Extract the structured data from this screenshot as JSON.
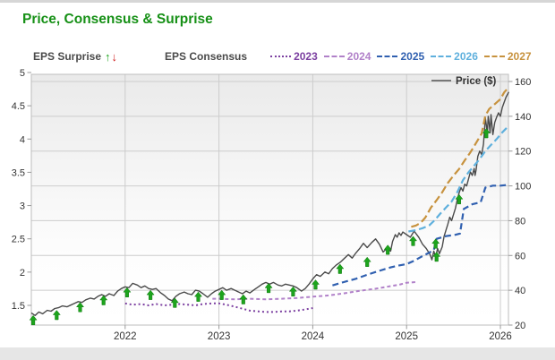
{
  "title": "Price, Consensus & Surprise",
  "title_color": "#169016",
  "legend": {
    "eps_surprise_label": "EPS Surprise",
    "up_arrow": "↑",
    "down_arrow": "↓",
    "up_color": "#1da41d",
    "down_color": "#d02020",
    "eps_consensus_label": "EPS Consensus",
    "price_label": "Price ($)"
  },
  "chart_data": {
    "type": "line",
    "title": "Price, Consensus & Surprise",
    "x_ticks": [
      "2022",
      "2023",
      "2024",
      "2025",
      "2026"
    ],
    "x_range": [
      2021.0,
      2026.1
    ],
    "left_axis": {
      "name": "EPS Consensus",
      "ticks": [
        "5",
        "4.5",
        "4",
        "3.5",
        "3",
        "2.5",
        "2",
        "1.5"
      ],
      "range": [
        1.5,
        5
      ]
    },
    "right_axis": {
      "name": "Price ($)",
      "ticks": [
        "160",
        "140",
        "120",
        "100",
        "80",
        "60",
        "40",
        "20"
      ],
      "range": [
        20,
        160
      ]
    },
    "grid": true,
    "legend_position": "top",
    "series": [
      {
        "name": "Price ($)",
        "axis": "price",
        "color": "#4a4a4a",
        "dash": "",
        "width": 1.4,
        "points": [
          [
            2021.0,
            27
          ],
          [
            2021.04,
            25.5
          ],
          [
            2021.08,
            27.5
          ],
          [
            2021.12,
            26.5
          ],
          [
            2021.17,
            28.5
          ],
          [
            2021.21,
            28
          ],
          [
            2021.25,
            29.5
          ],
          [
            2021.29,
            30
          ],
          [
            2021.33,
            31
          ],
          [
            2021.38,
            30.5
          ],
          [
            2021.42,
            31.5
          ],
          [
            2021.46,
            32.5
          ],
          [
            2021.5,
            33.5
          ],
          [
            2021.54,
            33
          ],
          [
            2021.58,
            34.5
          ],
          [
            2021.63,
            35.5
          ],
          [
            2021.67,
            35
          ],
          [
            2021.71,
            36.5
          ],
          [
            2021.75,
            37.5
          ],
          [
            2021.79,
            36.5
          ],
          [
            2021.83,
            38
          ],
          [
            2021.88,
            37
          ],
          [
            2021.92,
            39.5
          ],
          [
            2021.96,
            41
          ],
          [
            2022.0,
            42
          ],
          [
            2022.04,
            41.5
          ],
          [
            2022.08,
            44
          ],
          [
            2022.13,
            43
          ],
          [
            2022.17,
            41.5
          ],
          [
            2022.21,
            42.5
          ],
          [
            2022.25,
            41
          ],
          [
            2022.29,
            40.5
          ],
          [
            2022.33,
            41
          ],
          [
            2022.38,
            38.5
          ],
          [
            2022.42,
            37
          ],
          [
            2022.46,
            35
          ],
          [
            2022.5,
            34
          ],
          [
            2022.54,
            36.5
          ],
          [
            2022.58,
            38
          ],
          [
            2022.63,
            39
          ],
          [
            2022.67,
            38
          ],
          [
            2022.71,
            37.5
          ],
          [
            2022.75,
            40
          ],
          [
            2022.79,
            39.5
          ],
          [
            2022.83,
            38
          ],
          [
            2022.88,
            36
          ],
          [
            2022.92,
            38
          ],
          [
            2022.96,
            39.5
          ],
          [
            2023.0,
            40.5
          ],
          [
            2023.04,
            41.5
          ],
          [
            2023.08,
            40
          ],
          [
            2023.13,
            41
          ],
          [
            2023.17,
            40
          ],
          [
            2023.21,
            39
          ],
          [
            2023.25,
            38
          ],
          [
            2023.29,
            39.5
          ],
          [
            2023.33,
            38.5
          ],
          [
            2023.38,
            40.5
          ],
          [
            2023.42,
            42
          ],
          [
            2023.46,
            43.5
          ],
          [
            2023.5,
            44.5
          ],
          [
            2023.54,
            43.5
          ],
          [
            2023.58,
            44.5
          ],
          [
            2023.63,
            43
          ],
          [
            2023.67,
            42.5
          ],
          [
            2023.71,
            43.5
          ],
          [
            2023.75,
            43
          ],
          [
            2023.79,
            42.5
          ],
          [
            2023.83,
            41.5
          ],
          [
            2023.88,
            39.5
          ],
          [
            2023.92,
            41
          ],
          [
            2023.96,
            43.5
          ],
          [
            2024.0,
            46.5
          ],
          [
            2024.04,
            49
          ],
          [
            2024.08,
            48
          ],
          [
            2024.13,
            50.5
          ],
          [
            2024.17,
            49.5
          ],
          [
            2024.21,
            52.5
          ],
          [
            2024.25,
            54.5
          ],
          [
            2024.29,
            56
          ],
          [
            2024.33,
            58
          ],
          [
            2024.38,
            60.5
          ],
          [
            2024.42,
            58.5
          ],
          [
            2024.46,
            61.5
          ],
          [
            2024.5,
            64
          ],
          [
            2024.54,
            67
          ],
          [
            2024.58,
            64.5
          ],
          [
            2024.63,
            67.5
          ],
          [
            2024.67,
            69.5
          ],
          [
            2024.71,
            66.5
          ],
          [
            2024.75,
            62
          ],
          [
            2024.79,
            64
          ],
          [
            2024.83,
            62.5
          ],
          [
            2024.85,
            68
          ],
          [
            2024.88,
            72
          ],
          [
            2024.9,
            70.5
          ],
          [
            2024.92,
            73
          ],
          [
            2024.94,
            71.5
          ],
          [
            2024.96,
            73.5
          ],
          [
            2025.0,
            72
          ],
          [
            2025.04,
            70.5
          ],
          [
            2025.08,
            74
          ],
          [
            2025.13,
            70.5
          ],
          [
            2025.17,
            66.5
          ],
          [
            2025.21,
            64
          ],
          [
            2025.25,
            60.5
          ],
          [
            2025.27,
            57.5
          ],
          [
            2025.29,
            62.5
          ],
          [
            2025.31,
            59
          ],
          [
            2025.33,
            64
          ],
          [
            2025.35,
            61
          ],
          [
            2025.38,
            65
          ],
          [
            2025.4,
            71
          ],
          [
            2025.42,
            74.5
          ],
          [
            2025.44,
            78
          ],
          [
            2025.46,
            82
          ],
          [
            2025.48,
            80
          ],
          [
            2025.5,
            83.5
          ],
          [
            2025.52,
            87
          ],
          [
            2025.54,
            92
          ],
          [
            2025.56,
            96
          ],
          [
            2025.58,
            99
          ],
          [
            2025.6,
            97
          ],
          [
            2025.62,
            101
          ],
          [
            2025.64,
            100
          ],
          [
            2025.66,
            104
          ],
          [
            2025.68,
            108
          ],
          [
            2025.7,
            106
          ],
          [
            2025.72,
            110
          ],
          [
            2025.73,
            106
          ],
          [
            2025.74,
            109
          ],
          [
            2025.76,
            117
          ],
          [
            2025.78,
            120
          ],
          [
            2025.8,
            118
          ],
          [
            2025.81,
            121
          ],
          [
            2025.82,
            124
          ],
          [
            2025.83,
            132
          ],
          [
            2025.84,
            139
          ],
          [
            2025.85,
            135
          ],
          [
            2025.86,
            129.5
          ],
          [
            2025.87,
            140
          ],
          [
            2025.88,
            136
          ],
          [
            2025.89,
            130.5
          ],
          [
            2025.9,
            141
          ],
          [
            2025.92,
            129.5
          ],
          [
            2025.94,
            136.5
          ],
          [
            2025.96,
            139.5
          ],
          [
            2025.98,
            142
          ],
          [
            2026.0,
            140
          ],
          [
            2026.02,
            145
          ],
          [
            2026.04,
            148
          ],
          [
            2026.06,
            151
          ],
          [
            2026.09,
            154
          ]
        ]
      },
      {
        "name": "2023",
        "axis": "eps",
        "color": "#7b3fa0",
        "dash": "2 3",
        "width": 2,
        "points": [
          [
            2022.0,
            1.53
          ],
          [
            2022.08,
            1.51
          ],
          [
            2022.17,
            1.52
          ],
          [
            2022.25,
            1.5
          ],
          [
            2022.33,
            1.52
          ],
          [
            2022.42,
            1.5
          ],
          [
            2022.5,
            1.51
          ],
          [
            2022.58,
            1.52
          ],
          [
            2022.67,
            1.51
          ],
          [
            2022.75,
            1.5
          ],
          [
            2022.83,
            1.52
          ],
          [
            2022.92,
            1.53
          ],
          [
            2023.0,
            1.53
          ],
          [
            2023.08,
            1.51
          ],
          [
            2023.17,
            1.48
          ],
          [
            2023.25,
            1.45
          ],
          [
            2023.33,
            1.42
          ],
          [
            2023.42,
            1.41
          ],
          [
            2023.5,
            1.4
          ],
          [
            2023.58,
            1.4
          ],
          [
            2023.67,
            1.41
          ],
          [
            2023.75,
            1.41
          ],
          [
            2023.83,
            1.42
          ],
          [
            2023.92,
            1.44
          ],
          [
            2024.0,
            1.46
          ]
        ]
      },
      {
        "name": "2024",
        "axis": "eps",
        "color": "#b181c9",
        "dash": "4 3",
        "width": 2,
        "points": [
          [
            2022.93,
            1.6
          ],
          [
            2023.0,
            1.6
          ],
          [
            2023.17,
            1.59
          ],
          [
            2023.33,
            1.6
          ],
          [
            2023.5,
            1.59
          ],
          [
            2023.67,
            1.6
          ],
          [
            2023.83,
            1.61
          ],
          [
            2024.0,
            1.63
          ],
          [
            2024.17,
            1.65
          ],
          [
            2024.33,
            1.68
          ],
          [
            2024.5,
            1.72
          ],
          [
            2024.67,
            1.75
          ],
          [
            2024.83,
            1.79
          ],
          [
            2024.92,
            1.81
          ],
          [
            2025.0,
            1.84
          ],
          [
            2025.1,
            1.85
          ]
        ]
      },
      {
        "name": "2025",
        "axis": "eps",
        "color": "#3060b0",
        "dash": "7 4",
        "width": 2.2,
        "points": [
          [
            2024.21,
            1.8
          ],
          [
            2024.33,
            1.85
          ],
          [
            2024.46,
            1.9
          ],
          [
            2024.58,
            1.96
          ],
          [
            2024.71,
            2.02
          ],
          [
            2024.83,
            2.07
          ],
          [
            2024.92,
            2.1
          ],
          [
            2025.0,
            2.12
          ],
          [
            2025.08,
            2.17
          ],
          [
            2025.17,
            2.24
          ],
          [
            2025.25,
            2.3
          ],
          [
            2025.29,
            2.33
          ],
          [
            2025.32,
            2.5
          ],
          [
            2025.42,
            2.54
          ],
          [
            2025.52,
            2.56
          ],
          [
            2025.57,
            2.58
          ],
          [
            2025.61,
            2.95
          ],
          [
            2025.7,
            3.02
          ],
          [
            2025.79,
            3.05
          ],
          [
            2025.84,
            3.27
          ],
          [
            2025.92,
            3.3
          ],
          [
            2026.0,
            3.3
          ],
          [
            2026.08,
            3.31
          ]
        ]
      },
      {
        "name": "2026",
        "axis": "eps",
        "color": "#5fb0dd",
        "dash": "8 4",
        "width": 2.2,
        "points": [
          [
            2025.02,
            2.61
          ],
          [
            2025.1,
            2.63
          ],
          [
            2025.17,
            2.66
          ],
          [
            2025.24,
            2.7
          ],
          [
            2025.3,
            2.78
          ],
          [
            2025.36,
            2.88
          ],
          [
            2025.42,
            2.97
          ],
          [
            2025.48,
            3.06
          ],
          [
            2025.54,
            3.2
          ],
          [
            2025.6,
            3.38
          ],
          [
            2025.66,
            3.5
          ],
          [
            2025.72,
            3.6
          ],
          [
            2025.78,
            3.7
          ],
          [
            2025.84,
            3.82
          ],
          [
            2025.9,
            3.91
          ],
          [
            2025.96,
            4.0
          ],
          [
            2026.02,
            4.1
          ],
          [
            2026.09,
            4.2
          ]
        ]
      },
      {
        "name": "2027",
        "axis": "eps",
        "color": "#c7923e",
        "dash": "9 4",
        "width": 2.2,
        "points": [
          [
            2025.05,
            2.68
          ],
          [
            2025.1,
            2.7
          ],
          [
            2025.15,
            2.74
          ],
          [
            2025.2,
            2.82
          ],
          [
            2025.26,
            2.97
          ],
          [
            2025.32,
            3.08
          ],
          [
            2025.38,
            3.2
          ],
          [
            2025.44,
            3.34
          ],
          [
            2025.5,
            3.45
          ],
          [
            2025.56,
            3.55
          ],
          [
            2025.62,
            3.68
          ],
          [
            2025.68,
            3.8
          ],
          [
            2025.74,
            3.94
          ],
          [
            2025.8,
            4.08
          ],
          [
            2025.84,
            4.35
          ],
          [
            2025.88,
            4.45
          ],
          [
            2025.92,
            4.5
          ],
          [
            2025.96,
            4.55
          ],
          [
            2026.0,
            4.6
          ],
          [
            2026.04,
            4.7
          ],
          [
            2026.09,
            4.78
          ]
        ]
      }
    ],
    "surprise_arrows": {
      "direction": "up",
      "color": "#1da41d",
      "axis": "price",
      "points": [
        [
          2021.02,
          25.5
        ],
        [
          2021.27,
          28.5
        ],
        [
          2021.52,
          33
        ],
        [
          2021.77,
          37
        ],
        [
          2022.02,
          41.5
        ],
        [
          2022.27,
          40
        ],
        [
          2022.53,
          35.5
        ],
        [
          2022.78,
          39
        ],
        [
          2023.03,
          40
        ],
        [
          2023.26,
          37.5
        ],
        [
          2023.53,
          44
        ],
        [
          2023.79,
          42
        ],
        [
          2024.03,
          46
        ],
        [
          2024.29,
          55
        ],
        [
          2024.58,
          59
        ],
        [
          2024.8,
          66
        ],
        [
          2025.07,
          71
        ],
        [
          2025.31,
          69.5
        ],
        [
          2025.32,
          62
        ],
        [
          2025.56,
          95
        ],
        [
          2025.85,
          133
        ]
      ]
    },
    "colors": {
      "grid": "#cccccc",
      "axis_text": "#333333",
      "plot_border": "#bdbdbd",
      "plot_bg_top": "#eaeaea",
      "plot_bg_bottom": "#ffffff",
      "price_legend_line": "#777777"
    }
  }
}
